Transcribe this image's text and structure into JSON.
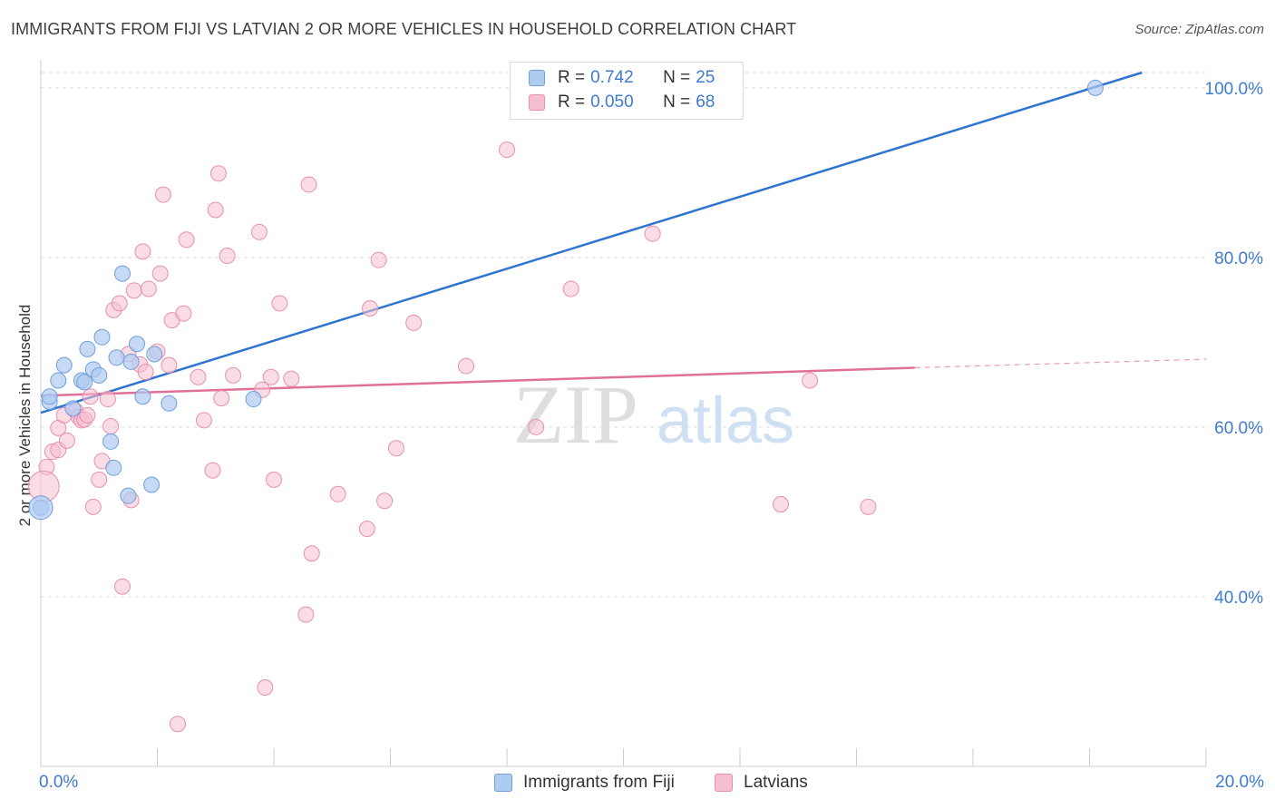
{
  "title": "IMMIGRANTS FROM FIJI VS LATVIAN 2 OR MORE VEHICLES IN HOUSEHOLD CORRELATION CHART",
  "source": "Source: ZipAtlas.com",
  "watermark": {
    "zip": "ZIP",
    "atlas": "atlas"
  },
  "legend": {
    "rows": [
      {
        "r_label": "R =",
        "r_value": "0.742",
        "n_label": "N =",
        "n_value": "25"
      },
      {
        "r_label": "R =",
        "r_value": "0.050",
        "n_label": "N =",
        "n_value": "68"
      }
    ]
  },
  "bottom_legend": {
    "fiji": "Immigrants from Fiji",
    "latvians": "Latvians"
  },
  "colors": {
    "fiji_fill": "#aecbf2",
    "fiji_stroke": "#6f9fdc",
    "fiji_line": "#2f74d0",
    "lat_fill": "#f6bfd0",
    "lat_stroke": "#e890ad",
    "lat_line": "#e0709a",
    "axis_text": "#3d7bd0",
    "grid": "#dddddd"
  },
  "chart_data": {
    "type": "scatter",
    "title": "IMMIGRANTS FROM FIJI VS LATVIAN 2 OR MORE VEHICLES IN HOUSEHOLD CORRELATION CHART",
    "xlabel": "",
    "ylabel": "2 or more Vehicles in Household",
    "xlim": [
      0,
      20
    ],
    "ylim": [
      20,
      101.8
    ],
    "x_tick_labels": [
      "0.0%",
      "20.0%"
    ],
    "y_ticks": [
      40,
      60,
      80,
      100
    ],
    "y_tick_labels": [
      "40.0%",
      "60.0%",
      "80.0%",
      "100.0%"
    ],
    "grid": true,
    "legend_position": "top-center",
    "series": [
      {
        "name": "Immigrants from Fiji",
        "R": 0.742,
        "N": 25,
        "trend": {
          "x": [
            0,
            18.9
          ],
          "y": [
            61.7,
            101.8
          ]
        },
        "points": [
          [
            0.15,
            63.0
          ],
          [
            0.3,
            65.5
          ],
          [
            0.4,
            67.3
          ],
          [
            0.55,
            62.2
          ],
          [
            0.7,
            65.5
          ],
          [
            0.75,
            65.3
          ],
          [
            0.8,
            69.2
          ],
          [
            0.9,
            66.8
          ],
          [
            1.0,
            66.1
          ],
          [
            1.05,
            70.6
          ],
          [
            1.2,
            58.3
          ],
          [
            1.25,
            55.2
          ],
          [
            1.3,
            68.2
          ],
          [
            1.4,
            78.1
          ],
          [
            1.5,
            51.9
          ],
          [
            1.55,
            67.7
          ],
          [
            1.65,
            69.8
          ],
          [
            1.75,
            63.6
          ],
          [
            1.9,
            53.2
          ],
          [
            1.95,
            68.6
          ],
          [
            2.2,
            62.8
          ],
          [
            3.65,
            63.3
          ],
          [
            0.15,
            63.6
          ],
          [
            0.0,
            50.5
          ],
          [
            18.1,
            100.0
          ]
        ]
      },
      {
        "name": "Latvians",
        "R": 0.05,
        "N": 68,
        "trend": {
          "x": [
            0,
            15.0
          ],
          "y": [
            63.7,
            67.0
          ]
        },
        "trend_dashed": {
          "x": [
            15.0,
            20.0
          ],
          "y": [
            67.0,
            68.0
          ]
        },
        "points": [
          [
            0.1,
            55.3
          ],
          [
            0.2,
            57.1
          ],
          [
            0.3,
            57.3
          ],
          [
            0.3,
            59.9
          ],
          [
            0.4,
            61.4
          ],
          [
            0.45,
            58.4
          ],
          [
            0.6,
            61.9
          ],
          [
            0.65,
            61.2
          ],
          [
            0.7,
            60.8
          ],
          [
            0.75,
            60.9
          ],
          [
            0.8,
            61.4
          ],
          [
            0.85,
            63.6
          ],
          [
            0.9,
            50.6
          ],
          [
            1.0,
            53.8
          ],
          [
            1.05,
            56.0
          ],
          [
            1.15,
            63.3
          ],
          [
            1.2,
            60.1
          ],
          [
            1.25,
            73.8
          ],
          [
            1.35,
            74.6
          ],
          [
            1.4,
            41.2
          ],
          [
            1.5,
            68.6
          ],
          [
            1.55,
            51.4
          ],
          [
            1.6,
            76.1
          ],
          [
            1.7,
            67.4
          ],
          [
            1.75,
            80.7
          ],
          [
            1.8,
            66.5
          ],
          [
            1.85,
            76.3
          ],
          [
            2.0,
            68.9
          ],
          [
            2.05,
            78.1
          ],
          [
            2.1,
            87.4
          ],
          [
            2.2,
            67.3
          ],
          [
            2.25,
            72.6
          ],
          [
            2.35,
            25.0
          ],
          [
            2.45,
            73.4
          ],
          [
            2.5,
            82.1
          ],
          [
            2.7,
            65.9
          ],
          [
            2.8,
            60.8
          ],
          [
            2.95,
            54.9
          ],
          [
            3.0,
            85.6
          ],
          [
            3.05,
            89.9
          ],
          [
            3.1,
            63.4
          ],
          [
            3.2,
            80.2
          ],
          [
            3.3,
            66.1
          ],
          [
            3.75,
            83.0
          ],
          [
            3.8,
            64.4
          ],
          [
            3.85,
            29.3
          ],
          [
            3.95,
            65.9
          ],
          [
            4.0,
            53.8
          ],
          [
            4.1,
            74.6
          ],
          [
            4.3,
            65.7
          ],
          [
            4.55,
            37.9
          ],
          [
            4.6,
            88.6
          ],
          [
            4.65,
            45.1
          ],
          [
            5.1,
            52.1
          ],
          [
            5.6,
            48.0
          ],
          [
            5.65,
            74.0
          ],
          [
            5.8,
            79.7
          ],
          [
            5.9,
            51.3
          ],
          [
            6.1,
            57.5
          ],
          [
            6.4,
            72.3
          ],
          [
            7.3,
            67.2
          ],
          [
            8.0,
            92.7
          ],
          [
            8.5,
            60.0
          ],
          [
            9.1,
            76.3
          ],
          [
            10.5,
            82.8
          ],
          [
            12.7,
            50.9
          ],
          [
            13.2,
            65.5
          ],
          [
            14.2,
            50.6
          ]
        ]
      }
    ]
  }
}
